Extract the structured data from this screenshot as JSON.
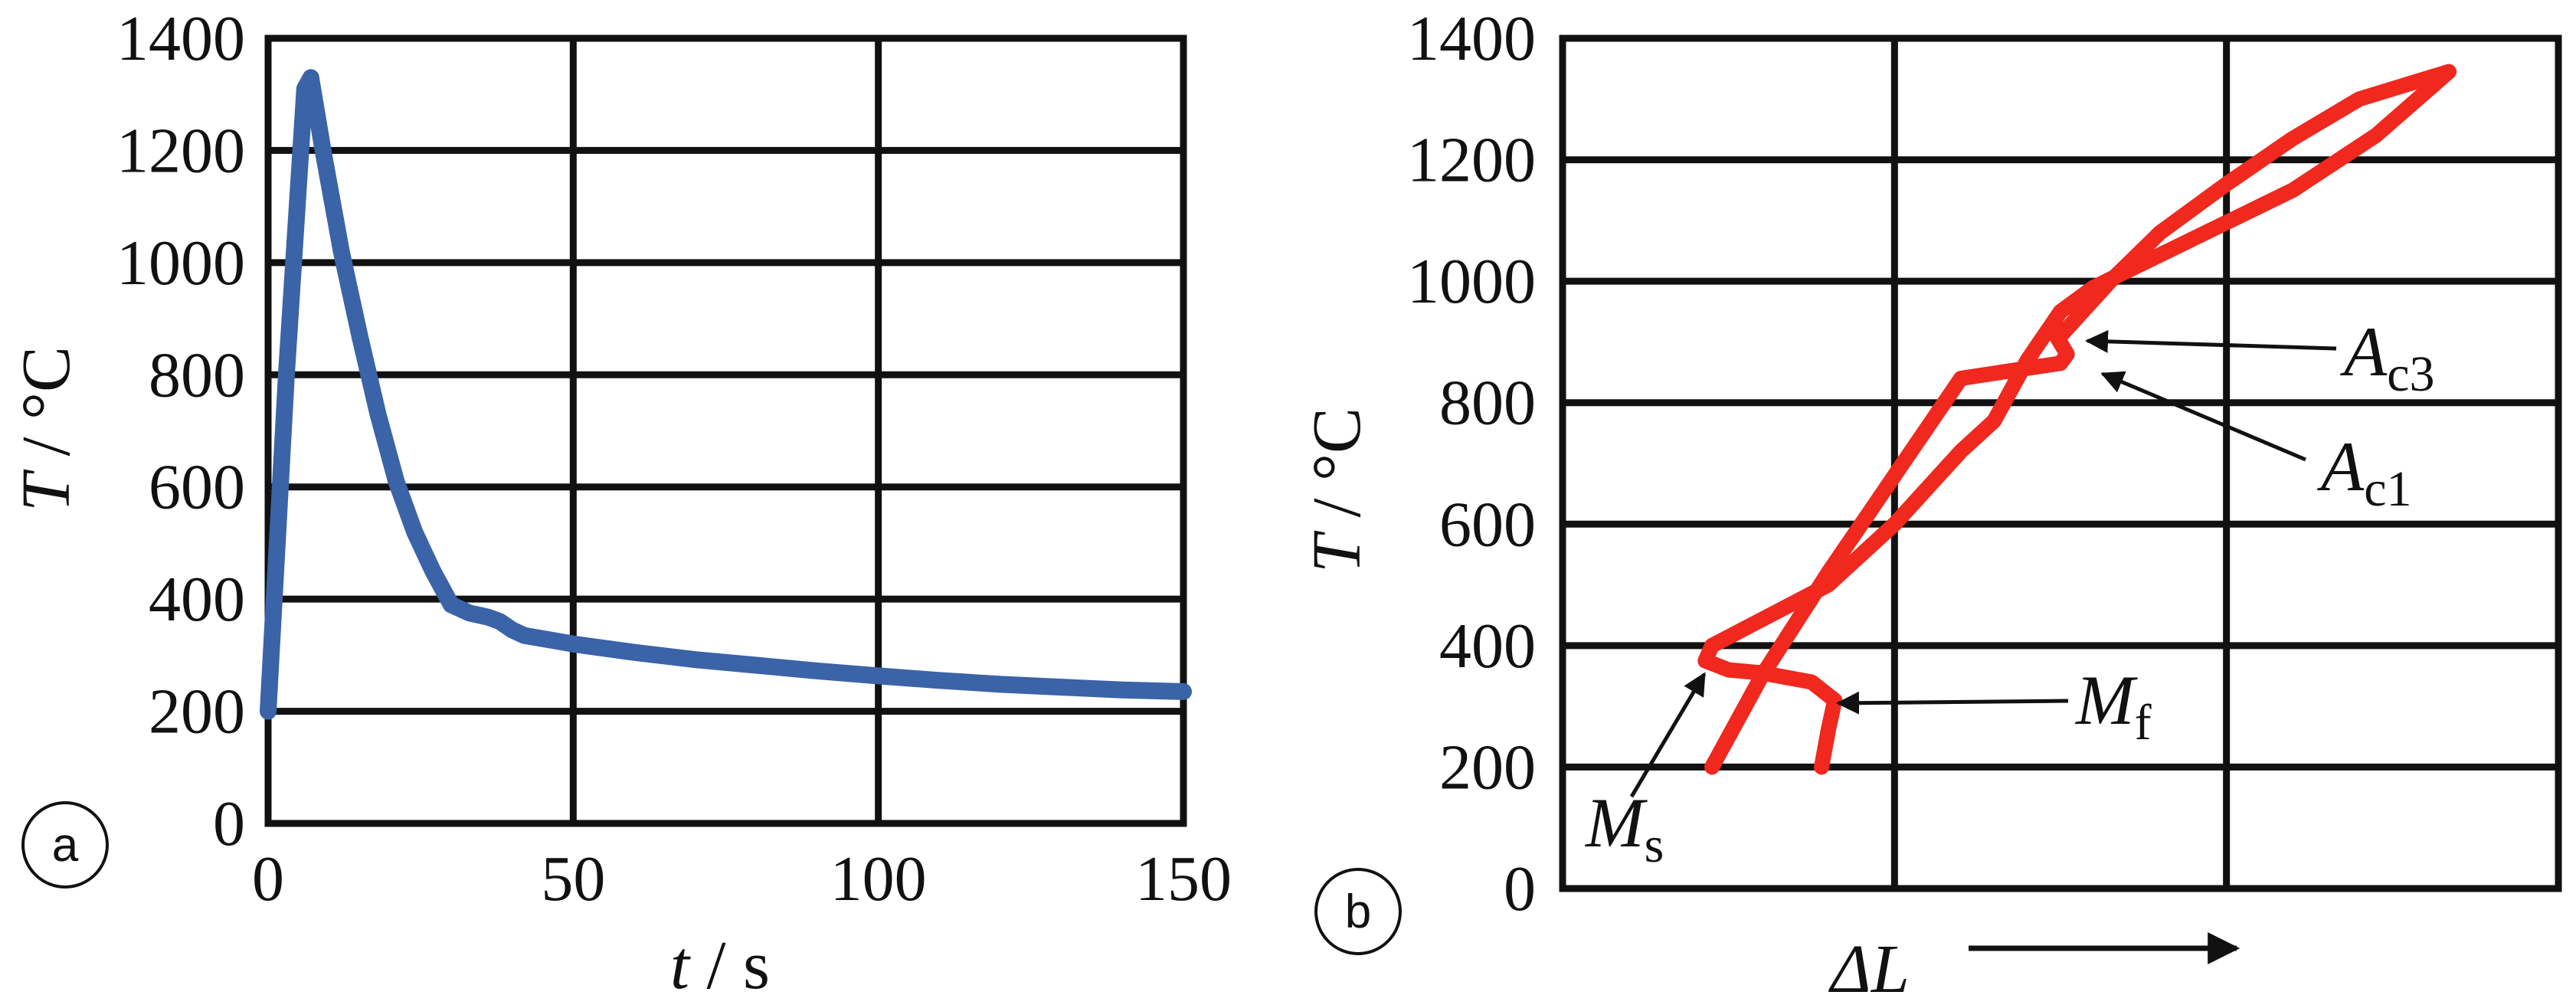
{
  "chart_data": [
    {
      "type": "line",
      "panel_label": "a",
      "xlabel": {
        "var": "t",
        "unit": " / s"
      },
      "ylabel": {
        "var": "T",
        "unit": " / °C"
      },
      "xlim": [
        0,
        150
      ],
      "ylim": [
        0,
        1400
      ],
      "xticks": [
        0,
        50,
        100,
        150
      ],
      "yticks": [
        0,
        200,
        400,
        600,
        800,
        1000,
        1200,
        1400
      ],
      "grid": true,
      "colors": {
        "line": "#3a63a8"
      },
      "series": [
        {
          "x": [
            0,
            3,
            6,
            7,
            9,
            12,
            15,
            18,
            21,
            24,
            27,
            30,
            33,
            36,
            38,
            40,
            42,
            50,
            60,
            70,
            80,
            90,
            100,
            110,
            120,
            130,
            140,
            150
          ],
          "y": [
            200,
            800,
            1310,
            1330,
            1200,
            1020,
            870,
            730,
            610,
            520,
            450,
            390,
            375,
            368,
            360,
            345,
            335,
            320,
            305,
            292,
            282,
            272,
            263,
            255,
            248,
            243,
            238,
            235
          ]
        }
      ]
    },
    {
      "type": "line",
      "panel_label": "b",
      "xlabel": {
        "var": "ΔL",
        "unit": ""
      },
      "ylabel": {
        "var": "T",
        "unit": " / °C"
      },
      "xlim": [
        0,
        3
      ],
      "ylim": [
        0,
        1400
      ],
      "yticks": [
        0,
        200,
        400,
        600,
        800,
        1000,
        1200,
        1400
      ],
      "xgrid": [
        1,
        2
      ],
      "grid": true,
      "colors": {
        "line": "#f0281e"
      },
      "series": [
        {
          "x": [
            0.45,
            0.6,
            0.8,
            1.0,
            1.2,
            1.5,
            1.52,
            1.47,
            1.5,
            1.65,
            1.8,
            2.0,
            2.2,
            2.4,
            2.67
          ],
          "y": [
            200,
            350,
            520,
            680,
            840,
            865,
            880,
            925,
            910,
            1000,
            1080,
            1160,
            1235,
            1300,
            1345
          ]
        },
        {
          "x": [
            2.67,
            2.45,
            2.2,
            1.9,
            1.6,
            1.5,
            1.4,
            1.3,
            1.2,
            1.0,
            0.8,
            0.45,
            0.43,
            0.5,
            0.6,
            0.75,
            0.82,
            0.8,
            0.78
          ],
          "y": [
            1345,
            1240,
            1150,
            1070,
            990,
            950,
            870,
            770,
            720,
            600,
            500,
            400,
            375,
            360,
            355,
            340,
            310,
            260,
            200
          ]
        }
      ],
      "annotations": [
        {
          "label": "A",
          "sub": "c3",
          "x": 1.52,
          "y": 910
        },
        {
          "label": "A",
          "sub": "c1",
          "x": 1.65,
          "y": 870
        },
        {
          "label": "M",
          "sub": "f",
          "x": 0.85,
          "y": 310
        },
        {
          "label": "M",
          "sub": "s",
          "x": 0.45,
          "y": 380
        }
      ]
    }
  ]
}
